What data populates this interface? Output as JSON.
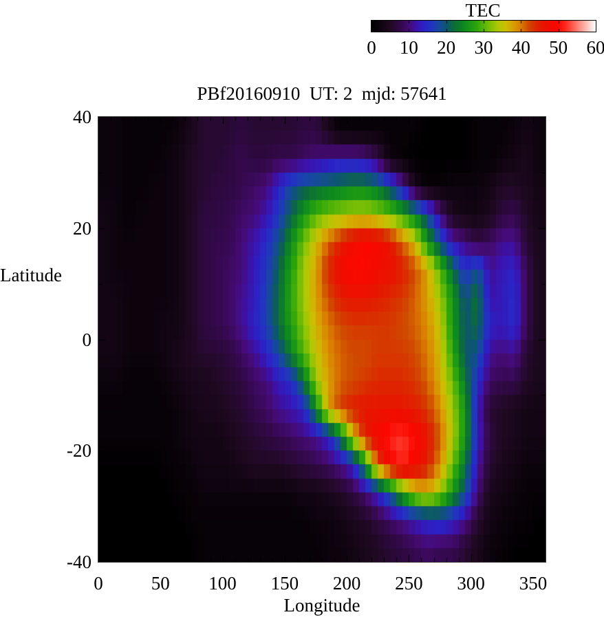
{
  "title_bar": {
    "note": "static scientific figure"
  },
  "chart_data": {
    "type": "heatmap",
    "title": "PBf20160910  UT: 2  mjd: 57641",
    "xlabel": "Longitude",
    "ylabel": "Latitude",
    "xlim": [
      0,
      360
    ],
    "ylim": [
      -40,
      40
    ],
    "x_ticks": [
      0,
      50,
      100,
      150,
      200,
      250,
      300,
      350
    ],
    "y_ticks": [
      40,
      20,
      0,
      -20,
      -40
    ],
    "x_minor_tick_step": 10,
    "y_minor_tick_step": 10,
    "grid": false,
    "colorbar_label": "TEC",
    "colorbar_ticks": [
      0,
      10,
      20,
      30,
      40,
      50,
      60
    ],
    "zlim": [
      0,
      60
    ],
    "lon_centers": [
      5,
      15,
      25,
      35,
      45,
      55,
      65,
      75,
      85,
      95,
      105,
      115,
      125,
      135,
      145,
      155,
      165,
      175,
      185,
      195,
      205,
      215,
      225,
      235,
      245,
      255,
      265,
      275,
      285,
      295,
      305,
      315,
      325,
      335,
      345,
      355
    ],
    "lat_centers": [
      37.5,
      32.5,
      27.5,
      22.5,
      17.5,
      12.5,
      7.5,
      2.5,
      -2.5,
      -7.5,
      -12.5,
      -17.5,
      -22.5,
      -27.5,
      -32.5,
      -37.5
    ],
    "values_tec": [
      [
        2,
        2,
        1,
        1,
        1,
        1,
        2,
        4,
        6,
        6,
        6,
        7,
        6,
        6,
        6,
        6,
        7,
        7,
        4,
        1,
        1,
        1,
        1,
        1,
        1,
        1,
        0,
        0,
        0,
        0,
        1,
        1,
        1,
        2,
        3,
        2
      ],
      [
        2,
        2,
        1,
        1,
        1,
        2,
        3,
        5,
        6,
        6,
        7,
        8,
        7,
        7,
        8,
        8,
        9,
        10,
        11,
        12,
        12,
        11,
        8,
        2,
        1,
        0,
        0,
        0,
        0,
        0,
        1,
        1,
        2,
        3,
        4,
        2
      ],
      [
        2,
        2,
        1,
        1,
        2,
        2,
        3,
        5,
        6,
        7,
        7,
        8,
        9,
        10,
        14,
        18,
        20,
        21,
        22,
        23,
        24,
        24,
        22,
        18,
        12,
        4,
        1,
        1,
        2,
        2,
        2,
        3,
        5,
        5,
        4,
        3
      ],
      [
        3,
        2,
        1,
        2,
        2,
        2,
        3,
        5,
        7,
        7,
        8,
        9,
        10,
        12,
        16,
        21,
        26,
        30,
        32,
        33,
        34,
        34,
        33,
        31,
        28,
        24,
        18,
        10,
        4,
        3,
        3,
        4,
        7,
        8,
        5,
        3
      ],
      [
        3,
        2,
        2,
        2,
        2,
        2,
        3,
        5,
        7,
        8,
        8,
        10,
        12,
        15,
        19,
        25,
        31,
        36,
        41,
        45,
        48,
        50,
        49,
        46,
        41,
        36,
        26,
        18,
        12,
        10,
        7,
        9,
        11,
        11,
        6,
        4
      ],
      [
        3,
        2,
        2,
        2,
        2,
        2,
        3,
        5,
        7,
        8,
        9,
        10,
        13,
        16,
        21,
        27,
        33,
        38,
        44,
        48,
        50,
        50,
        48,
        47,
        45,
        42,
        38,
        30,
        22,
        15,
        19,
        11,
        13,
        14,
        8,
        4
      ],
      [
        3,
        3,
        2,
        2,
        2,
        2,
        3,
        5,
        7,
        8,
        9,
        11,
        13,
        17,
        22,
        28,
        33,
        38,
        42,
        45,
        46,
        46,
        45,
        44,
        43,
        41,
        38,
        33,
        26,
        19,
        23,
        12,
        13,
        15,
        8,
        4
      ],
      [
        3,
        3,
        2,
        2,
        2,
        3,
        3,
        5,
        7,
        8,
        9,
        11,
        14,
        17,
        22,
        27,
        32,
        37,
        40,
        42,
        43,
        43,
        43,
        43,
        42,
        41,
        39,
        35,
        26,
        20,
        22,
        14,
        13,
        15,
        8,
        4
      ],
      [
        3,
        3,
        2,
        2,
        2,
        3,
        4,
        5,
        6,
        6,
        7,
        9,
        11,
        14,
        18,
        24,
        30,
        35,
        39,
        41,
        42,
        42,
        43,
        43,
        43,
        42,
        40,
        36,
        28,
        20,
        19,
        11,
        10,
        11,
        6,
        4
      ],
      [
        2,
        2,
        1,
        1,
        1,
        2,
        3,
        4,
        4,
        5,
        6,
        7,
        9,
        10,
        13,
        15,
        22,
        33,
        38,
        41,
        42,
        43,
        44,
        44,
        44,
        43,
        41,
        37,
        31,
        23,
        15,
        9,
        8,
        8,
        5,
        4
      ],
      [
        1,
        1,
        1,
        1,
        1,
        1,
        2,
        3,
        4,
        4,
        5,
        6,
        8,
        9,
        11,
        12,
        14,
        24,
        38,
        43,
        45,
        46,
        46,
        46,
        46,
        45,
        43,
        39,
        33,
        26,
        13,
        6,
        5,
        4,
        3,
        3
      ],
      [
        1,
        1,
        1,
        1,
        1,
        1,
        2,
        3,
        3,
        3,
        4,
        5,
        6,
        7,
        8,
        9,
        10,
        11,
        14,
        22,
        36,
        45,
        49,
        52,
        53,
        50,
        46,
        41,
        34,
        26,
        14,
        7,
        5,
        4,
        3,
        3
      ],
      [
        0,
        0,
        0,
        0,
        0,
        1,
        1,
        2,
        3,
        3,
        3,
        4,
        5,
        5,
        5,
        6,
        7,
        8,
        9,
        11,
        14,
        25,
        42,
        49,
        52,
        49,
        45,
        39,
        31,
        23,
        12,
        6,
        4,
        3,
        2,
        2
      ],
      [
        0,
        0,
        0,
        0,
        0,
        0,
        1,
        1,
        2,
        2,
        2,
        2,
        2,
        2,
        2,
        2,
        3,
        3,
        4,
        5,
        7,
        10,
        14,
        20,
        28,
        35,
        37,
        33,
        26,
        19,
        10,
        4,
        3,
        2,
        1,
        1
      ],
      [
        0,
        0,
        0,
        0,
        0,
        0,
        0,
        1,
        1,
        1,
        1,
        1,
        1,
        1,
        1,
        1,
        1,
        2,
        2,
        3,
        4,
        5,
        7,
        9,
        11,
        13,
        15,
        16,
        14,
        11,
        6,
        3,
        2,
        1,
        1,
        0
      ],
      [
        0,
        0,
        0,
        0,
        0,
        0,
        0,
        0,
        1,
        1,
        1,
        1,
        1,
        1,
        1,
        1,
        1,
        1,
        2,
        2,
        3,
        4,
        5,
        6,
        7,
        8,
        9,
        8,
        8,
        6,
        4,
        2,
        1,
        0,
        0,
        0
      ]
    ]
  },
  "colors": {
    "background": "#ffffff",
    "text": "#000000",
    "plot_background": "#000000",
    "axis_border": "#3a3a3a",
    "colormap_stops": [
      [
        0,
        "#000000"
      ],
      [
        3,
        "#130514"
      ],
      [
        5,
        "#200923"
      ],
      [
        8,
        "#35094e"
      ],
      [
        10,
        "#450b76"
      ],
      [
        12,
        "#3c12aa"
      ],
      [
        14,
        "#2b22c6"
      ],
      [
        16,
        "#2134c0"
      ],
      [
        18,
        "#17499e"
      ],
      [
        20,
        "#0d5670"
      ],
      [
        22,
        "#0c6c38"
      ],
      [
        25,
        "#0e8c1e"
      ],
      [
        28,
        "#2ba40c"
      ],
      [
        30,
        "#55b409"
      ],
      [
        32,
        "#84c105"
      ],
      [
        34,
        "#b0c805"
      ],
      [
        36,
        "#cdbd03"
      ],
      [
        38,
        "#d89f02"
      ],
      [
        40,
        "#d97a01"
      ],
      [
        42,
        "#d04a00"
      ],
      [
        44,
        "#dc2800"
      ],
      [
        46,
        "#e81400"
      ],
      [
        48,
        "#f30b00"
      ],
      [
        50,
        "#fb0800"
      ],
      [
        52,
        "#fc2a1d"
      ],
      [
        54,
        "#fd5f50"
      ],
      [
        56,
        "#fd9488"
      ],
      [
        58,
        "#fec9c2"
      ],
      [
        60,
        "#ffffff"
      ]
    ]
  }
}
